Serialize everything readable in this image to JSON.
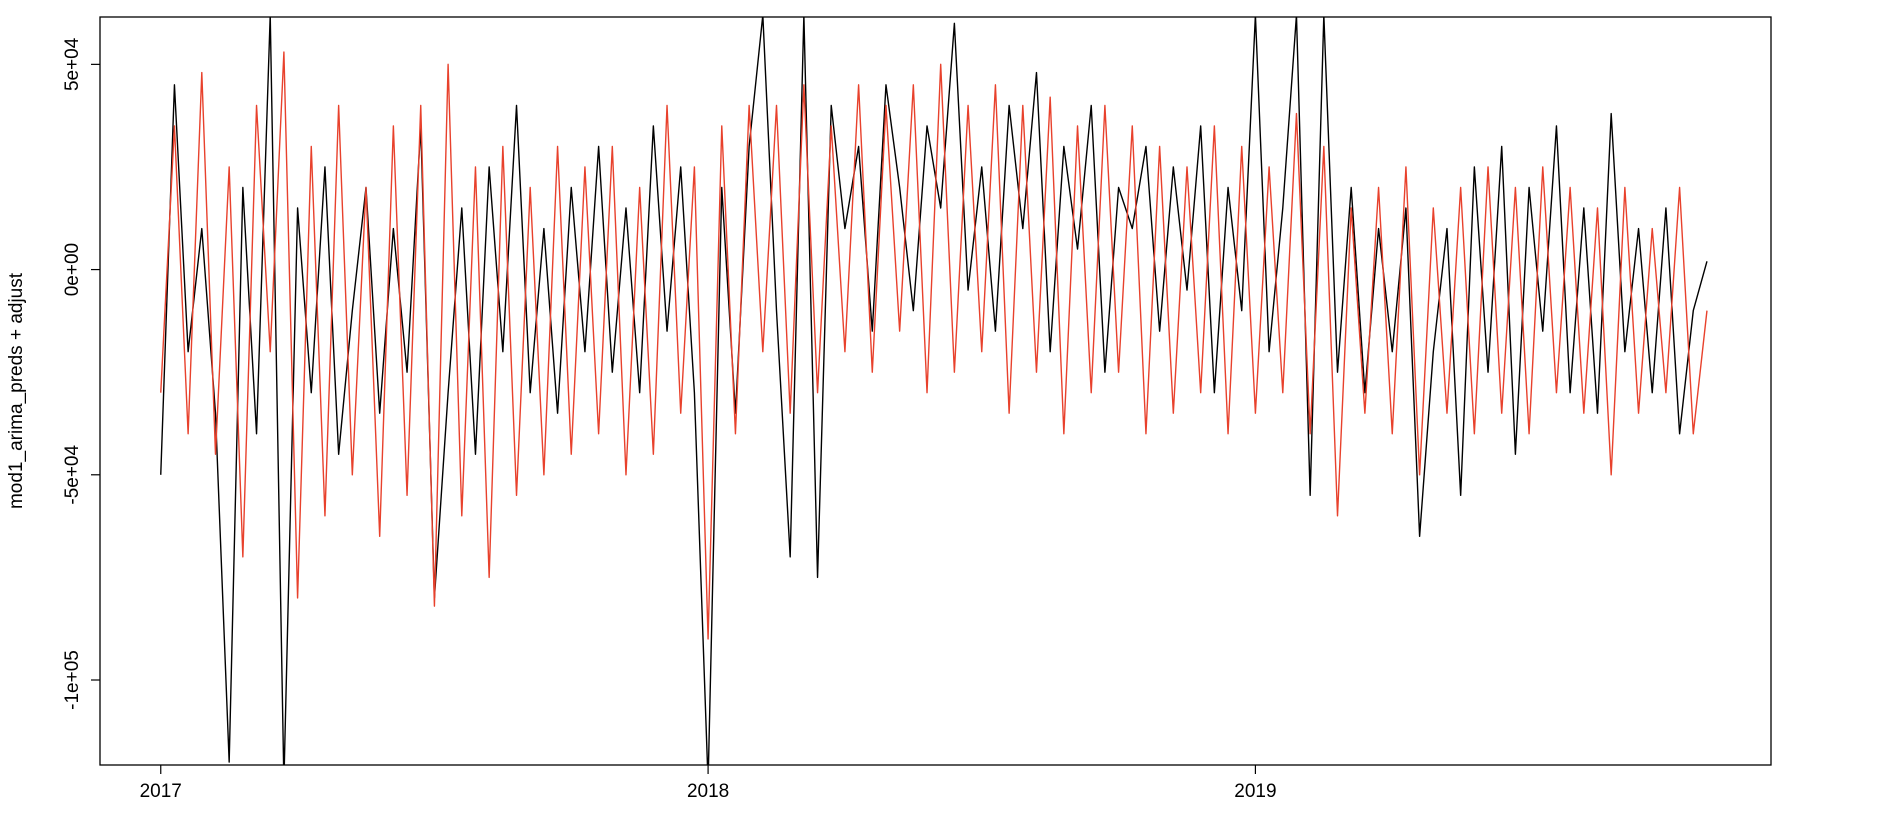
{
  "chart_data": {
    "type": "line",
    "y_label": "mod1_arima_preds + adjust",
    "x": [
      2017,
      2017.025,
      2017.05,
      2017.075,
      2017.1,
      2017.125,
      2017.15,
      2017.175,
      2017.2,
      2017.225,
      2017.25,
      2017.275,
      2017.3,
      2017.325,
      2017.35,
      2017.375,
      2017.4,
      2017.425,
      2017.45,
      2017.475,
      2017.5,
      2017.525,
      2017.55,
      2017.575,
      2017.6,
      2017.625,
      2017.65,
      2017.675,
      2017.7,
      2017.725,
      2017.75,
      2017.775,
      2017.8,
      2017.825,
      2017.85,
      2017.875,
      2017.9,
      2017.925,
      2017.95,
      2017.975,
      2018,
      2018.025,
      2018.05,
      2018.075,
      2018.1,
      2018.125,
      2018.15,
      2018.175,
      2018.2,
      2018.225,
      2018.25,
      2018.275,
      2018.3,
      2018.325,
      2018.35,
      2018.375,
      2018.4,
      2018.425,
      2018.45,
      2018.475,
      2018.5,
      2018.525,
      2018.55,
      2018.575,
      2018.6,
      2018.625,
      2018.65,
      2018.675,
      2018.7,
      2018.725,
      2018.75,
      2018.775,
      2018.8,
      2018.825,
      2018.85,
      2018.875,
      2018.9,
      2018.925,
      2018.95,
      2018.975,
      2019,
      2019.025,
      2019.05,
      2019.075,
      2019.1,
      2019.125,
      2019.15,
      2019.175,
      2019.2,
      2019.225,
      2019.25,
      2019.275,
      2019.3,
      2019.325,
      2019.35,
      2019.375,
      2019.4,
      2019.425,
      2019.45,
      2019.475,
      2019.5,
      2019.525,
      2019.55,
      2019.575,
      2019.6,
      2019.625,
      2019.65,
      2019.675,
      2019.7,
      2019.725,
      2019.75,
      2019.775,
      2019.8,
      2019.825
    ],
    "series": [
      {
        "color": "#000000",
        "values": [
          -50000,
          45000,
          -20000,
          10000,
          -35000,
          -120000,
          20000,
          -40000,
          62000,
          -125000,
          15000,
          -30000,
          25000,
          -45000,
          -10000,
          20000,
          -35000,
          10000,
          -25000,
          35000,
          -80000,
          -30000,
          15000,
          -45000,
          25000,
          -20000,
          40000,
          -30000,
          10000,
          -35000,
          20000,
          -20000,
          30000,
          -25000,
          15000,
          -30000,
          35000,
          -15000,
          25000,
          -30000,
          -125000,
          20000,
          -35000,
          30000,
          62000,
          -10000,
          -70000,
          62000,
          -75000,
          40000,
          10000,
          30000,
          -15000,
          45000,
          20000,
          -10000,
          35000,
          15000,
          60000,
          -5000,
          25000,
          -15000,
          40000,
          10000,
          48000,
          -20000,
          30000,
          5000,
          40000,
          -25000,
          20000,
          10000,
          30000,
          -15000,
          25000,
          -5000,
          35000,
          -30000,
          20000,
          -10000,
          62000,
          -20000,
          15000,
          62000,
          -55000,
          62000,
          -25000,
          20000,
          -30000,
          10000,
          -20000,
          15000,
          -65000,
          -20000,
          10000,
          -55000,
          25000,
          -25000,
          30000,
          -45000,
          20000,
          -15000,
          35000,
          -30000,
          15000,
          -35000,
          38000,
          -20000,
          10000,
          -30000,
          15000,
          -40000,
          -10000,
          2000
        ]
      },
      {
        "color": "#e8412c",
        "values": [
          -30000,
          35000,
          -40000,
          48000,
          -45000,
          25000,
          -70000,
          40000,
          -20000,
          53000,
          -80000,
          30000,
          -60000,
          40000,
          -50000,
          20000,
          -65000,
          35000,
          -55000,
          40000,
          -82000,
          50000,
          -60000,
          25000,
          -75000,
          30000,
          -55000,
          20000,
          -50000,
          30000,
          -45000,
          25000,
          -40000,
          30000,
          -50000,
          20000,
          -45000,
          40000,
          -35000,
          25000,
          -90000,
          35000,
          -40000,
          40000,
          -20000,
          40000,
          -35000,
          45000,
          -30000,
          35000,
          -20000,
          45000,
          -25000,
          40000,
          -15000,
          45000,
          -30000,
          50000,
          -25000,
          40000,
          -20000,
          45000,
          -35000,
          40000,
          -25000,
          42000,
          -40000,
          35000,
          -30000,
          40000,
          -25000,
          35000,
          -40000,
          30000,
          -35000,
          25000,
          -30000,
          35000,
          -40000,
          30000,
          -35000,
          25000,
          -30000,
          38000,
          -40000,
          30000,
          -60000,
          15000,
          -35000,
          20000,
          -40000,
          25000,
          -50000,
          15000,
          -35000,
          20000,
          -40000,
          25000,
          -35000,
          20000,
          -40000,
          25000,
          -30000,
          20000,
          -35000,
          15000,
          -50000,
          20000,
          -35000,
          10000,
          -30000,
          20000,
          -40000,
          -10000
        ]
      }
    ],
    "xlim": [
      2016.889,
      2019.942
    ],
    "xticks": [
      2017,
      2018,
      2019
    ],
    "ylim": [
      -120710,
      61540
    ],
    "yticks": [
      {
        "value": -100000,
        "label": "-1e+05"
      },
      {
        "value": -50000,
        "label": "-5e+04"
      },
      {
        "value": 0,
        "label": "0e+00"
      },
      {
        "value": 50000,
        "label": "5e+04"
      }
    ]
  }
}
